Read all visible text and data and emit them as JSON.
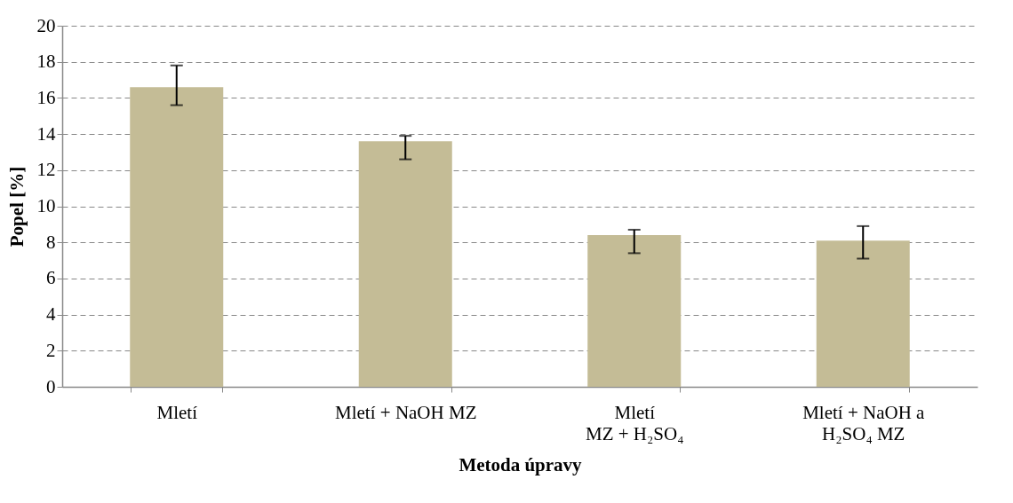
{
  "chart_data": {
    "type": "bar",
    "xlabel": "Metoda úpravy",
    "ylabel": "Popel [%]",
    "categories": [
      "Mletí",
      "Mletí + NaOH MZ",
      "Mletí\nMZ + H₂SO₄",
      "Mletí + NaOH a\nH₂SO₄ MZ"
    ],
    "values": [
      16.6,
      13.6,
      8.4,
      8.1
    ],
    "color": "#c4bc96",
    "errors": [
      [
        15.6,
        17.8
      ],
      [
        12.6,
        13.9
      ],
      [
        7.4,
        8.7
      ],
      [
        7.1,
        8.9
      ]
    ],
    "ylim": [
      0,
      20
    ],
    "yticks": [
      0,
      2,
      4,
      6,
      8,
      10,
      12,
      14,
      16,
      18,
      20
    ],
    "grid": "y"
  }
}
